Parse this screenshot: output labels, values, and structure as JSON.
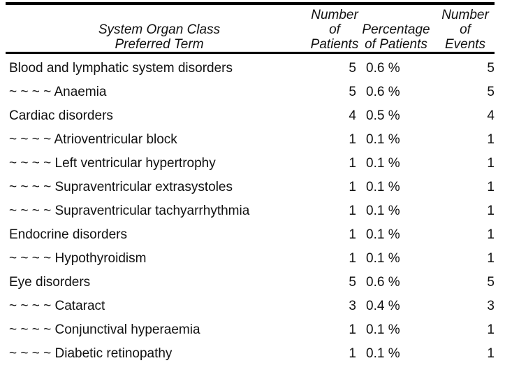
{
  "colors": {
    "text": "#111111",
    "rule": "#000000",
    "background": "#ffffff"
  },
  "table": {
    "headers": {
      "term": [
        "System Organ Class",
        "Preferred Term"
      ],
      "patients": [
        "Number",
        "of",
        "Patients"
      ],
      "percentage": [
        "Percentage",
        "of Patients"
      ],
      "events": [
        "Number",
        "of",
        "Events"
      ]
    },
    "rows": [
      {
        "term": "Blood and lymphatic system disorders",
        "patients": "5",
        "percentage": "0.6 %",
        "events": "5"
      },
      {
        "term": "~ ~ ~ ~ Anaemia",
        "patients": "5",
        "percentage": "0.6 %",
        "events": "5"
      },
      {
        "term": "Cardiac disorders",
        "patients": "4",
        "percentage": "0.5 %",
        "events": "4"
      },
      {
        "term": "~ ~ ~ ~ Atrioventricular block",
        "patients": "1",
        "percentage": "0.1 %",
        "events": "1"
      },
      {
        "term": "~ ~ ~ ~ Left ventricular hypertrophy",
        "patients": "1",
        "percentage": "0.1 %",
        "events": "1"
      },
      {
        "term": "~ ~ ~ ~ Supraventricular extrasystoles",
        "patients": "1",
        "percentage": "0.1 %",
        "events": "1"
      },
      {
        "term": "~ ~ ~ ~ Supraventricular tachyarrhythmia",
        "patients": "1",
        "percentage": "0.1 %",
        "events": "1"
      },
      {
        "term": "Endocrine disorders",
        "patients": "1",
        "percentage": "0.1 %",
        "events": "1"
      },
      {
        "term": "~ ~ ~ ~ Hypothyroidism",
        "patients": "1",
        "percentage": "0.1 %",
        "events": "1"
      },
      {
        "term": "Eye disorders",
        "patients": "5",
        "percentage": "0.6 %",
        "events": "5"
      },
      {
        "term": "~ ~ ~ ~ Cataract",
        "patients": "3",
        "percentage": "0.4 %",
        "events": "3"
      },
      {
        "term": "~ ~ ~ ~ Conjunctival hyperaemia",
        "patients": "1",
        "percentage": "0.1 %",
        "events": "1"
      },
      {
        "term": "~ ~ ~ ~ Diabetic retinopathy",
        "patients": "1",
        "percentage": "0.1 %",
        "events": "1"
      }
    ]
  }
}
